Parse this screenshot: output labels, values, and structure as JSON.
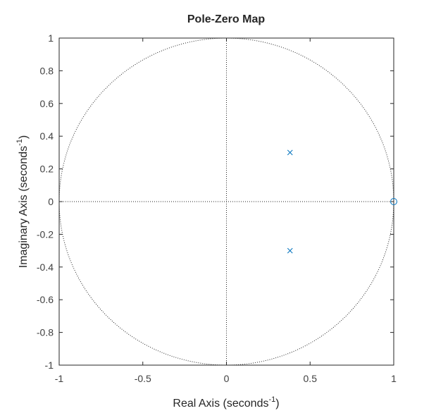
{
  "chart_data": {
    "type": "scatter",
    "title": "Pole-Zero Map",
    "xlabel": {
      "text": "Real Axis (seconds",
      "sup": "-1",
      "close": ")"
    },
    "ylabel": {
      "text": "Imaginary Axis (seconds",
      "sup": "-1",
      "close": ")"
    },
    "xlim": [
      -1,
      1
    ],
    "ylim": [
      -1,
      1
    ],
    "xticks": [
      -1,
      -0.5,
      0,
      0.5,
      1
    ],
    "xtick_labels": [
      "-1",
      "-0.5",
      "0",
      "0.5",
      "1"
    ],
    "yticks": [
      -1,
      -0.8,
      -0.6,
      -0.4,
      -0.2,
      0,
      0.2,
      0.4,
      0.6,
      0.8,
      1
    ],
    "ytick_labels": [
      "-1",
      "-0.8",
      "-0.6",
      "-0.4",
      "-0.2",
      "0",
      "0.2",
      "0.4",
      "0.6",
      "0.8",
      "1"
    ],
    "grid": false,
    "unit_circle": true,
    "series": [
      {
        "marker": "x",
        "points": [
          [
            0.38,
            0.3
          ],
          [
            0.38,
            -0.3
          ]
        ]
      },
      {
        "marker": "o",
        "points": [
          [
            1.0,
            0.0
          ]
        ]
      }
    ],
    "colors": {
      "markers": "#0072bd",
      "axes": "#262626",
      "ticks_text": "#404040"
    }
  }
}
